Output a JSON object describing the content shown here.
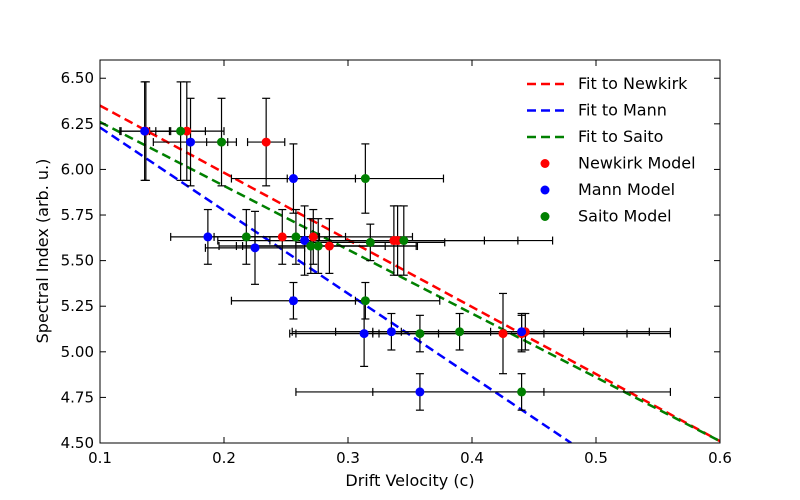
{
  "chart_data": {
    "type": "scatter",
    "xlabel": "Drift Velocity (c)",
    "ylabel": "Spectral Index (arb. u.)",
    "xlim": [
      0.1,
      0.6
    ],
    "ylim": [
      4.5,
      6.6
    ],
    "xticks": [
      "0.1",
      "0.2",
      "0.3",
      "0.4",
      "0.5",
      "0.6"
    ],
    "yticks": [
      "4.50",
      "4.75",
      "5.00",
      "5.25",
      "5.50",
      "5.75",
      "6.00",
      "6.25",
      "6.50"
    ],
    "grid": false,
    "legend_position": "top-right",
    "fits": [
      {
        "name": "Fit to Newkirk",
        "color": "#ff0000",
        "x": [
          0.1,
          0.6
        ],
        "y": [
          6.35,
          4.51
        ]
      },
      {
        "name": "Fit to Mann",
        "color": "#0000ff",
        "x": [
          0.1,
          0.48
        ],
        "y": [
          6.23,
          4.5
        ]
      },
      {
        "name": "Fit to Saito",
        "color": "#008000",
        "x": [
          0.1,
          0.6
        ],
        "y": [
          6.26,
          4.51
        ]
      }
    ],
    "series": [
      {
        "name": "Newkirk Model",
        "color": "#ff0000",
        "points": [
          {
            "x": 0.137,
            "y": 6.21,
            "xerr": 0.02,
            "yerr": 0.27
          },
          {
            "x": 0.17,
            "y": 6.21,
            "xerr": 0.03,
            "yerr": 0.27
          },
          {
            "x": 0.234,
            "y": 6.15,
            "xerr": 0.015,
            "yerr": 0.24
          },
          {
            "x": 0.247,
            "y": 5.63,
            "xerr": 0.03,
            "yerr": 0.15
          },
          {
            "x": 0.272,
            "y": 5.63,
            "xerr": 0.08,
            "yerr": 0.15
          },
          {
            "x": 0.285,
            "y": 5.58,
            "xerr": 0.07,
            "yerr": 0.15
          },
          {
            "x": 0.337,
            "y": 5.61,
            "xerr": 0.1,
            "yerr": 0.19
          },
          {
            "x": 0.34,
            "y": 5.61,
            "xerr": 0.07,
            "yerr": 0.19
          },
          {
            "x": 0.425,
            "y": 5.1,
            "xerr": 0.1,
            "yerr": 0.22
          },
          {
            "x": 0.44,
            "y": 5.1,
            "xerr": 0.12,
            "yerr": 0.1
          },
          {
            "x": 0.443,
            "y": 5.11,
            "xerr": 0.1,
            "yerr": 0.1
          }
        ]
      },
      {
        "name": "Mann Model",
        "color": "#0000ff",
        "points": [
          {
            "x": 0.136,
            "y": 6.21,
            "xerr": 0.02,
            "yerr": 0.27
          },
          {
            "x": 0.173,
            "y": 6.15,
            "xerr": 0.03,
            "yerr": 0.24
          },
          {
            "x": 0.187,
            "y": 5.63,
            "xerr": 0.03,
            "yerr": 0.15
          },
          {
            "x": 0.225,
            "y": 5.57,
            "xerr": 0.04,
            "yerr": 0.2
          },
          {
            "x": 0.256,
            "y": 5.95,
            "xerr": 0.05,
            "yerr": 0.19
          },
          {
            "x": 0.265,
            "y": 5.61,
            "xerr": 0.07,
            "yerr": 0.19
          },
          {
            "x": 0.256,
            "y": 5.28,
            "xerr": 0.05,
            "yerr": 0.1
          },
          {
            "x": 0.313,
            "y": 5.1,
            "xerr": 0.06,
            "yerr": 0.18
          },
          {
            "x": 0.335,
            "y": 5.11,
            "xerr": 0.08,
            "yerr": 0.1
          },
          {
            "x": 0.358,
            "y": 4.78,
            "xerr": 0.1,
            "yerr": 0.1
          },
          {
            "x": 0.44,
            "y": 5.11,
            "xerr": 0.12,
            "yerr": 0.1
          }
        ]
      },
      {
        "name": "Saito Model",
        "color": "#008000",
        "points": [
          {
            "x": 0.165,
            "y": 6.21,
            "xerr": 0.02,
            "yerr": 0.27
          },
          {
            "x": 0.198,
            "y": 6.15,
            "xerr": 0.012,
            "yerr": 0.24
          },
          {
            "x": 0.218,
            "y": 5.63,
            "xerr": 0.03,
            "yerr": 0.15
          },
          {
            "x": 0.258,
            "y": 5.63,
            "xerr": 0.04,
            "yerr": 0.15
          },
          {
            "x": 0.27,
            "y": 5.58,
            "xerr": 0.06,
            "yerr": 0.15
          },
          {
            "x": 0.276,
            "y": 5.58,
            "xerr": 0.08,
            "yerr": 0.15
          },
          {
            "x": 0.314,
            "y": 5.95,
            "xerr": 0.063,
            "yerr": 0.19
          },
          {
            "x": 0.318,
            "y": 5.6,
            "xerr": 0.06,
            "yerr": 0.1
          },
          {
            "x": 0.345,
            "y": 5.61,
            "xerr": 0.12,
            "yerr": 0.19
          },
          {
            "x": 0.314,
            "y": 5.28,
            "xerr": 0.06,
            "yerr": 0.1
          },
          {
            "x": 0.358,
            "y": 5.1,
            "xerr": 0.1,
            "yerr": 0.1
          },
          {
            "x": 0.39,
            "y": 5.11,
            "xerr": 0.1,
            "yerr": 0.1
          },
          {
            "x": 0.44,
            "y": 4.78,
            "xerr": 0.12,
            "yerr": 0.1
          }
        ]
      }
    ]
  }
}
